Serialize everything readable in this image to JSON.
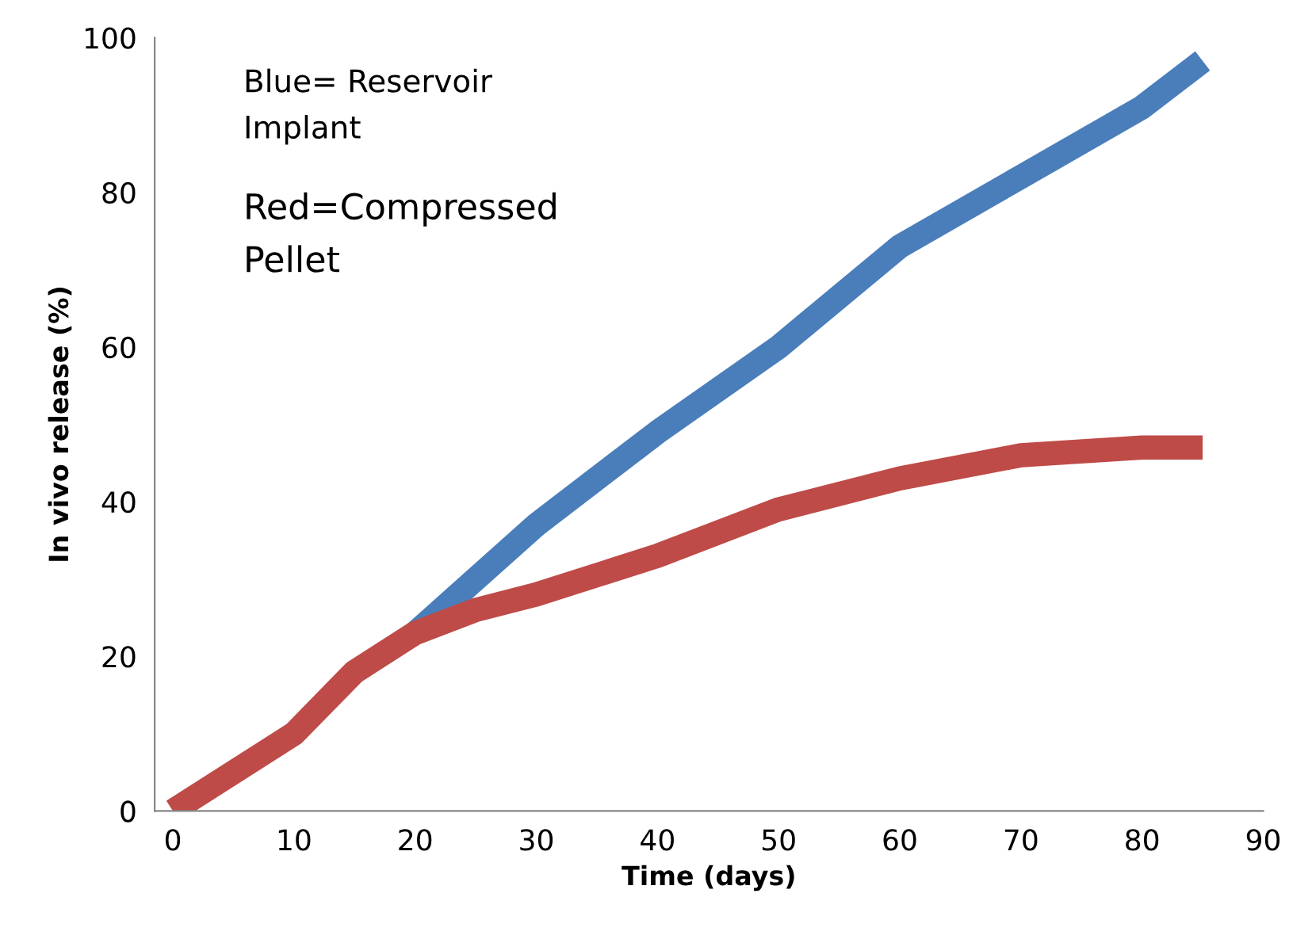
{
  "chart_data": {
    "type": "line",
    "xlabel": "Time (days)",
    "ylabel": "In vivo release (%)",
    "series": [
      {
        "color": "#4a7ebb",
        "x": [
          20,
          25,
          30,
          40,
          50,
          60,
          70,
          80,
          85
        ],
        "values": [
          23,
          30,
          37,
          49,
          60,
          73,
          82,
          91,
          97
        ]
      },
      {
        "color": "#be4b48",
        "x": [
          0,
          5,
          10,
          15,
          20,
          25,
          30,
          40,
          50,
          60,
          70,
          80,
          85
        ],
        "values": [
          0,
          5,
          10,
          18,
          23,
          26,
          28,
          33,
          39,
          43,
          46,
          47,
          47
        ]
      }
    ],
    "annotations": [
      "Blue= Reservoir\nImplant",
      "Red=Compressed\nPellet"
    ],
    "xlim": [
      -1.5,
      90
    ],
    "ylim": [
      0,
      100
    ],
    "xticks": [
      0,
      10,
      20,
      30,
      40,
      50,
      60,
      70,
      80,
      90
    ],
    "yticks": [
      0,
      20,
      40,
      60,
      80,
      100
    ],
    "grid": false,
    "legend": false,
    "marker": "none",
    "line_style": "solid"
  }
}
